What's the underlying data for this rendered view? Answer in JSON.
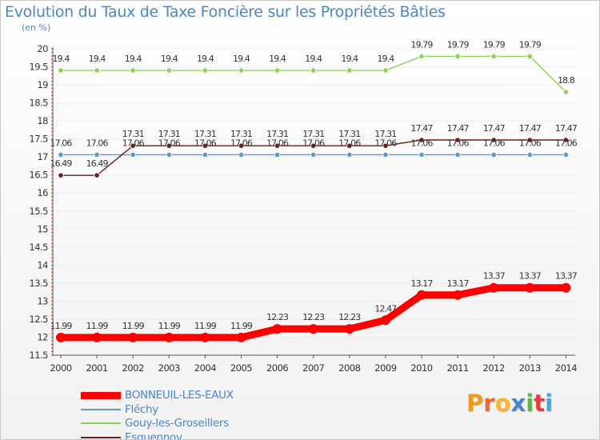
{
  "chart_data": {
    "type": "line",
    "title": "Evolution du Taux de Taxe Foncière sur les Propriétés Bâties",
    "subtitle": "(en %)",
    "categories": [
      "2000",
      "2001",
      "2002",
      "2003",
      "2004",
      "2005",
      "2006",
      "2007",
      "2008",
      "2009",
      "2010",
      "2011",
      "2012",
      "2013",
      "2014"
    ],
    "ylim": [
      11.5,
      20
    ],
    "yticks": [
      "11.5",
      "12",
      "12.5",
      "13",
      "13.5",
      "14",
      "14.5",
      "15",
      "15.5",
      "16",
      "16.5",
      "17",
      "17.5",
      "18",
      "18.5",
      "19",
      "19.5",
      "20"
    ],
    "grid": "horizontal, dotted",
    "legend_position": "bottom-left",
    "series": [
      {
        "name": "BONNEUIL-LES-EAUX",
        "color": "#ff0000",
        "values": [
          11.99,
          11.99,
          11.99,
          11.99,
          11.99,
          11.99,
          12.23,
          12.23,
          12.23,
          12.47,
          13.17,
          13.17,
          13.37,
          13.37,
          13.37
        ],
        "labels": [
          "11.99",
          "11.99",
          "11.99",
          "11.99",
          "11.99",
          "11.99",
          "12.23",
          "12.23",
          "12.23",
          "12.47",
          "13.17",
          "13.17",
          "13.37",
          "13.37",
          "13.37"
        ]
      },
      {
        "name": "Fléchy",
        "color": "#5a9ad0",
        "values": [
          17.06,
          17.06,
          17.06,
          17.06,
          17.06,
          17.06,
          17.06,
          17.06,
          17.06,
          17.06,
          17.06,
          17.06,
          17.06,
          17.06,
          17.06
        ],
        "labels": [
          "17.06",
          "17.06",
          "17.06",
          "17.06",
          "17.06",
          "17.06",
          "17.06",
          "17.06",
          "17.06",
          "17.06",
          "17.06",
          "17.06",
          "17.06",
          "17.06",
          "17.06"
        ]
      },
      {
        "name": "Gouy-les-Groseillers",
        "color": "#8ed15a",
        "values": [
          19.4,
          19.4,
          19.4,
          19.4,
          19.4,
          19.4,
          19.4,
          19.4,
          19.4,
          19.4,
          19.79,
          19.79,
          19.79,
          19.79,
          18.8
        ],
        "labels": [
          "19.4",
          "19.4",
          "19.4",
          "19.4",
          "19.4",
          "19.4",
          "19.4",
          "19.4",
          "19.4",
          "19.4",
          "19.79",
          "19.79",
          "19.79",
          "19.79",
          "18.8"
        ]
      },
      {
        "name": "Esquennoy",
        "color": "#6b1f1f",
        "values": [
          16.49,
          16.49,
          17.31,
          17.31,
          17.31,
          17.31,
          17.31,
          17.31,
          17.31,
          17.31,
          17.47,
          17.47,
          17.47,
          17.47,
          17.47
        ],
        "labels": [
          "16.49",
          "16.49",
          "17.31",
          "17.31",
          "17.31",
          "17.31",
          "17.31",
          "17.31",
          "17.31",
          "17.31",
          "17.47",
          "17.47",
          "17.47",
          "17.47",
          "17.47"
        ]
      }
    ]
  },
  "brand": {
    "text": "Proxiti",
    "colors": [
      "#f39a1e",
      "#f06b2a",
      "#f7b731",
      "#4a86c8",
      "#56b84a",
      "#e93b3b",
      "#4aa5d8"
    ]
  }
}
